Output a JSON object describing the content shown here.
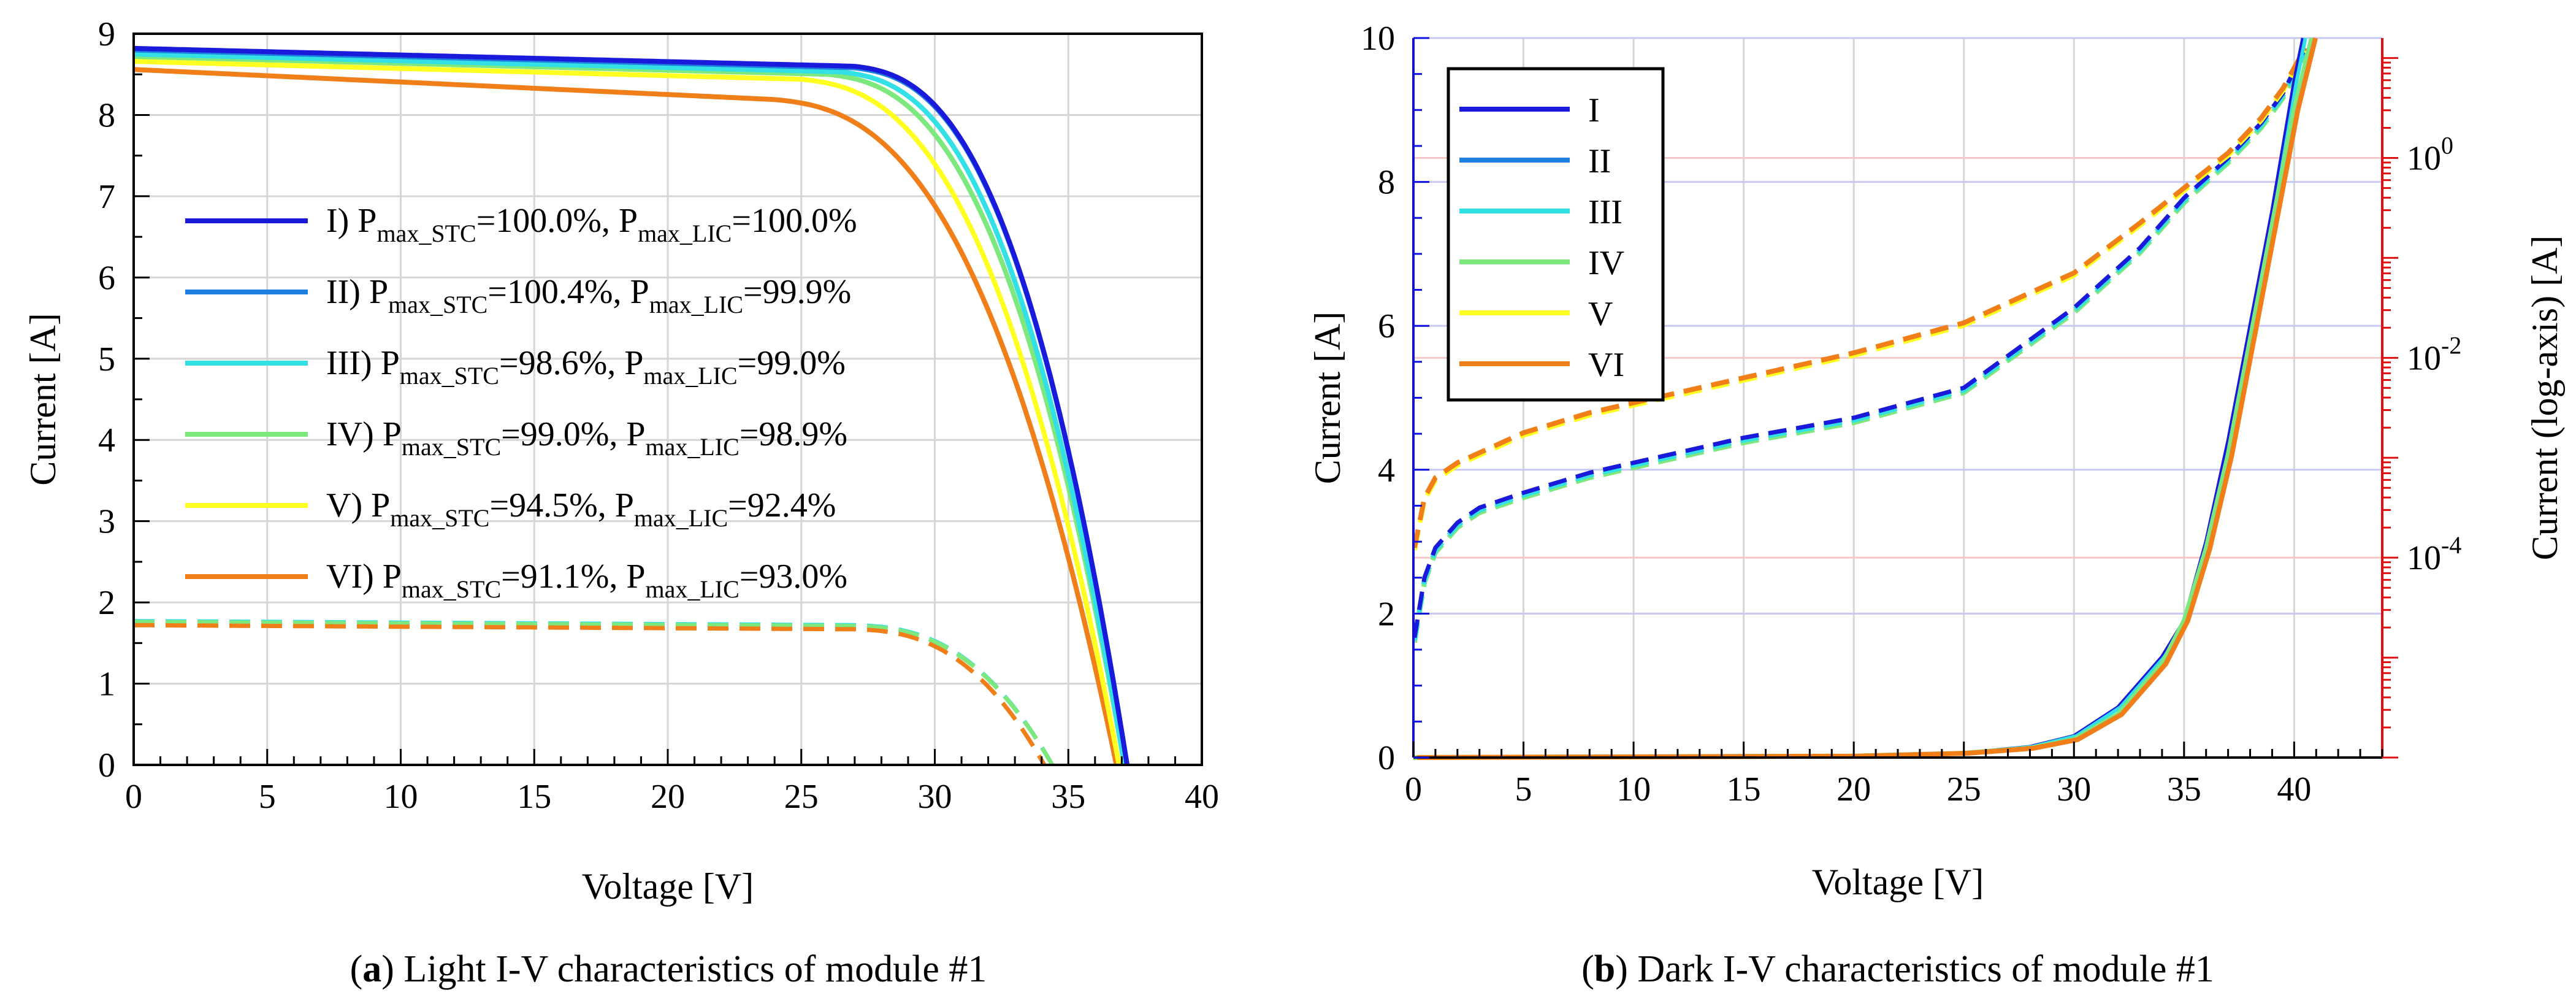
{
  "chart_data": [
    {
      "type": "line",
      "panel": "a",
      "caption_letter": "a",
      "caption": " Light I-V characteristics of module #1",
      "xlabel": "Voltage [V]",
      "ylabel": "Current [A]",
      "xlim": [
        0,
        40
      ],
      "ylim": [
        0,
        9
      ],
      "xticks": [
        "0",
        "5",
        "10",
        "15",
        "20",
        "25",
        "30",
        "35",
        "40"
      ],
      "yticks": [
        "0",
        "1",
        "2",
        "3",
        "4",
        "5",
        "6",
        "7",
        "8",
        "9"
      ],
      "grid": true,
      "legend_position": "center-left",
      "series": [
        {
          "name": "I",
          "color": "#1a1adb",
          "pstc": "=100.0%, P",
          "plic": "=100.0%",
          "isc": 8.82,
          "voc": 37.2,
          "rollover": 27.0
        },
        {
          "name": "II",
          "color": "#1e7fe0",
          "pstc": "=100.4%, P",
          "plic": "=99.9%",
          "isc": 8.8,
          "voc": 37.2,
          "rollover": 27.0
        },
        {
          "name": "III",
          "color": "#33e0e6",
          "pstc": "=98.6%, P",
          "plic": "=99.0%",
          "isc": 8.75,
          "voc": 37.1,
          "rollover": 26.5
        },
        {
          "name": "IV",
          "color": "#7de87d",
          "pstc": "=99.0%, P",
          "plic": "=98.9%",
          "isc": 8.72,
          "voc": 37.1,
          "rollover": 26.0
        },
        {
          "name": "V",
          "color": "#ffff22",
          "pstc": "=94.5%, P",
          "plic": "=92.4%",
          "isc": 8.66,
          "voc": 36.9,
          "rollover": 25.0
        },
        {
          "name": "VI",
          "color": "#f07f1a",
          "pstc": "=91.1%, P",
          "plic": "=93.0%",
          "isc": 8.56,
          "voc": 36.8,
          "rollover": 24.0
        }
      ],
      "low_irradiance_curves": [
        {
          "color": "#33e0e6",
          "isc": 1.77,
          "voc": 34.4
        },
        {
          "color": "#7de87d",
          "isc": 1.76,
          "voc": 34.4
        },
        {
          "color": "#f07f1a",
          "isc": 1.72,
          "voc": 34.1
        }
      ],
      "legend_sub_stc": "max_STC",
      "legend_sub_lic": "max_LIC"
    },
    {
      "type": "line",
      "panel": "b",
      "caption_letter": "b",
      "caption": " Dark I-V characteristics of module #1",
      "xlabel": "Voltage [V]",
      "ylabel_left": "Current [A]",
      "ylabel_right": "Current (log-axis) [A]",
      "xlim": [
        0,
        44
      ],
      "ylim_left": [
        0,
        10
      ],
      "ylim_right_log10": [
        -6,
        1.2
      ],
      "xticks": [
        "0",
        "5",
        "10",
        "15",
        "20",
        "25",
        "30",
        "35",
        "40"
      ],
      "yticks_left": [
        "0",
        "2",
        "4",
        "6",
        "8",
        "10"
      ],
      "yticks_right": [
        {
          "base": "10",
          "exp": "0",
          "value": 0
        },
        {
          "base": "10",
          "exp": "-2",
          "value": -2
        },
        {
          "base": "10",
          "exp": "-4",
          "value": -4
        }
      ],
      "left_axis_color": "#1010e0",
      "right_axis_color": "#e01010",
      "legend_position": "top-left",
      "series": [
        {
          "name": "I",
          "color": "#1a1adb"
        },
        {
          "name": "II",
          "color": "#1e7fe0"
        },
        {
          "name": "III",
          "color": "#33e0e6"
        },
        {
          "name": "IV",
          "color": "#7de87d"
        },
        {
          "name": "V",
          "color": "#ffff22"
        },
        {
          "name": "VI",
          "color": "#f07f1a"
        }
      ],
      "linear_curve_A": [
        [
          0,
          0
        ],
        [
          20,
          0.02
        ],
        [
          25,
          0.06
        ],
        [
          28,
          0.15
        ],
        [
          30,
          0.3
        ],
        [
          32,
          0.7
        ],
        [
          34,
          1.4
        ],
        [
          35,
          1.9
        ],
        [
          36,
          3.0
        ],
        [
          37,
          4.4
        ],
        [
          38,
          6.0
        ],
        [
          39,
          7.6
        ],
        [
          40,
          9.4
        ],
        [
          40.4,
          10
        ]
      ],
      "linear_curve_B": [
        [
          0,
          0
        ],
        [
          20,
          0.02
        ],
        [
          25,
          0.06
        ],
        [
          28,
          0.13
        ],
        [
          30,
          0.25
        ],
        [
          32,
          0.6
        ],
        [
          34,
          1.3
        ],
        [
          35,
          1.9
        ],
        [
          36,
          2.9
        ],
        [
          37,
          4.2
        ],
        [
          38,
          5.8
        ],
        [
          39,
          7.4
        ],
        [
          40,
          9.0
        ],
        [
          40.8,
          10
        ]
      ],
      "log_curve_blue": [
        [
          0.05,
          -4.8
        ],
        [
          0.5,
          -4.2
        ],
        [
          1,
          -3.9
        ],
        [
          2,
          -3.65
        ],
        [
          3,
          -3.5
        ],
        [
          5,
          -3.35
        ],
        [
          8,
          -3.15
        ],
        [
          10,
          -3.05
        ],
        [
          12,
          -2.95
        ],
        [
          15,
          -2.8
        ],
        [
          20,
          -2.6
        ],
        [
          25,
          -2.3
        ],
        [
          30,
          -1.5
        ],
        [
          33,
          -0.9
        ],
        [
          35,
          -0.4
        ],
        [
          37,
          0.0
        ],
        [
          38.5,
          0.35
        ],
        [
          39.5,
          0.65
        ],
        [
          40.5,
          1.1
        ]
      ],
      "log_curve_red": [
        [
          0.05,
          -3.9
        ],
        [
          0.5,
          -3.4
        ],
        [
          1,
          -3.2
        ],
        [
          2,
          -3.05
        ],
        [
          3,
          -2.95
        ],
        [
          5,
          -2.75
        ],
        [
          8,
          -2.55
        ],
        [
          10,
          -2.45
        ],
        [
          15,
          -2.2
        ],
        [
          20,
          -1.95
        ],
        [
          25,
          -1.65
        ],
        [
          30,
          -1.15
        ],
        [
          33,
          -0.65
        ],
        [
          35,
          -0.3
        ],
        [
          37,
          0.05
        ],
        [
          38.5,
          0.4
        ],
        [
          39.5,
          0.7
        ],
        [
          40.5,
          1.1
        ]
      ]
    }
  ]
}
